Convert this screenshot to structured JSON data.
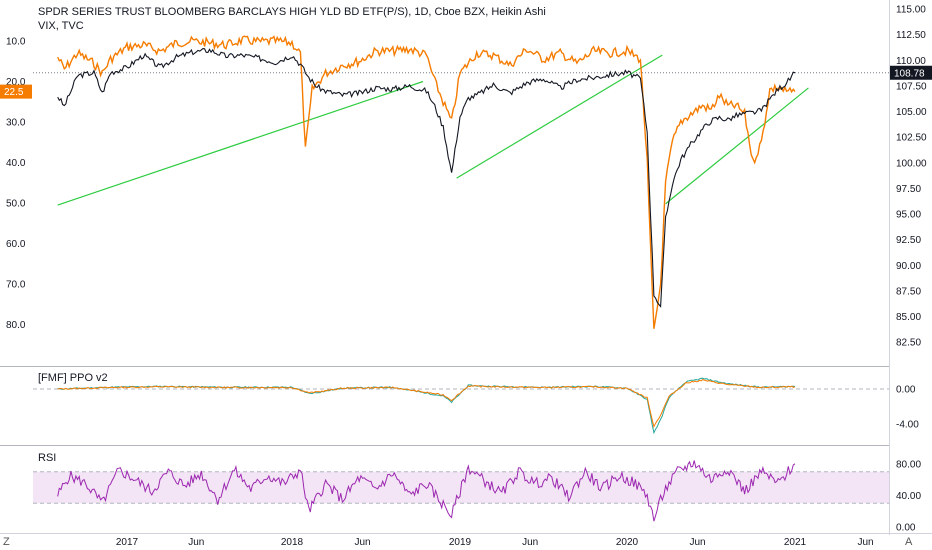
{
  "header": {
    "title": "SPDR SERIES TRUST BLOOMBERG BARCLAYS HIGH YLD BD ETF(P/S), 1D, Cboe BZX, Heikin Ashi",
    "overlay_symbol": "VIX, TVC"
  },
  "panes": {
    "ppo_label": "[FMF] PPO v2",
    "rsi_label": "RSI"
  },
  "corner": {
    "left": "Z",
    "right": "A"
  },
  "badges": {
    "jnk_price": "108.78",
    "vix_value": "22.5",
    "jnk_color": "#131722",
    "vix_color": "#f57c00"
  },
  "colors": {
    "jnk_line": "#131722",
    "vix_line": "#f57c00",
    "trendline": "#2ecc40",
    "rsi_line": "#9c27b0",
    "rsi_band": "#f3e5f5",
    "ppo_pos": "#26a69a",
    "ppo_neg": "#ef5350"
  },
  "chart_data": [
    {
      "type": "line",
      "title": "SPDR SERIES TRUST BLOOMBERG BARCLAYS HIGH YLD BD ETF(P/S), 1D, Cboe BZX, Heikin Ashi",
      "x_ticks": [
        "2017",
        "Jun",
        "2018",
        "Jun",
        "2019",
        "Jun",
        "2020",
        "Jun",
        "2021",
        "Jun"
      ],
      "right_axis_ticks": [
        "115.00",
        "112.50",
        "110.00",
        "107.50",
        "105.00",
        "102.50",
        "100.00",
        "97.50",
        "95.00",
        "92.50",
        "90.00",
        "87.50",
        "85.00",
        "82.50"
      ],
      "left_axis_ticks": [
        "10.0",
        "20.0",
        "30.0",
        "40.0",
        "50.0",
        "60.0",
        "70.0",
        "80.0"
      ],
      "left_axis_inverted": true,
      "series": [
        {
          "name": "SPDR SERIES TRUST BLOOMBERG BARCLAYS HIGH YLD BD ETF(P/S)",
          "axis": "right",
          "x": [
            2016.58,
            2016.62,
            2016.7,
            2016.8,
            2016.85,
            2016.9,
            2017.0,
            2017.1,
            2017.2,
            2017.3,
            2017.4,
            2017.5,
            2017.6,
            2017.7,
            2017.8,
            2017.9,
            2018.0,
            2018.05,
            2018.1,
            2018.15,
            2018.2,
            2018.3,
            2018.4,
            2018.5,
            2018.6,
            2018.7,
            2018.8,
            2018.85,
            2018.9,
            2018.95,
            2019.0,
            2019.05,
            2019.1,
            2019.2,
            2019.3,
            2019.4,
            2019.5,
            2019.6,
            2019.7,
            2019.8,
            2019.9,
            2020.0,
            2020.08,
            2020.12,
            2020.16,
            2020.2,
            2020.23,
            2020.27,
            2020.32,
            2020.38,
            2020.45,
            2020.5,
            2020.55,
            2020.6,
            2020.65,
            2020.7,
            2020.75,
            2020.8,
            2020.85,
            2020.9,
            2020.95,
            2021.0
          ],
          "values": [
            106.5,
            105.5,
            108.5,
            108.8,
            106.8,
            108.8,
            109.3,
            110.5,
            109.3,
            110.3,
            110.8,
            111.0,
            110.4,
            110.5,
            110.2,
            109.8,
            110.5,
            109.6,
            108.3,
            107.4,
            107.0,
            106.6,
            106.8,
            107.3,
            107.2,
            107.5,
            107.0,
            105.5,
            103.5,
            99.0,
            104.5,
            106.3,
            106.6,
            107.6,
            106.8,
            107.8,
            108.2,
            107.3,
            108.1,
            108.3,
            108.6,
            108.8,
            108.2,
            103.0,
            87.2,
            86.0,
            94.5,
            98.0,
            100.3,
            101.8,
            103.3,
            104.1,
            104.4,
            104.2,
            104.6,
            104.8,
            104.9,
            105.1,
            106.2,
            107.2,
            107.8,
            108.78
          ]
        },
        {
          "name": "VIX, TVC",
          "axis": "left",
          "x": [
            2016.58,
            2016.62,
            2016.7,
            2016.8,
            2016.85,
            2016.9,
            2017.0,
            2017.1,
            2017.2,
            2017.3,
            2017.4,
            2017.5,
            2017.6,
            2017.7,
            2017.8,
            2017.9,
            2018.0,
            2018.05,
            2018.08,
            2018.12,
            2018.2,
            2018.3,
            2018.4,
            2018.5,
            2018.6,
            2018.7,
            2018.8,
            2018.85,
            2018.9,
            2018.95,
            2019.0,
            2019.05,
            2019.1,
            2019.2,
            2019.3,
            2019.4,
            2019.5,
            2019.6,
            2019.7,
            2019.8,
            2019.9,
            2020.0,
            2020.08,
            2020.12,
            2020.16,
            2020.2,
            2020.23,
            2020.27,
            2020.32,
            2020.38,
            2020.45,
            2020.5,
            2020.55,
            2020.6,
            2020.65,
            2020.7,
            2020.75,
            2020.8,
            2020.85,
            2020.9,
            2020.95,
            2021.0
          ],
          "values": [
            14.0,
            17.0,
            13.0,
            15.5,
            18.0,
            14.5,
            11.5,
            11.0,
            12.5,
            10.5,
            10.0,
            10.5,
            11.0,
            9.8,
            10.2,
            10.0,
            10.5,
            13.0,
            37.0,
            22.0,
            18.0,
            16.0,
            15.0,
            12.5,
            12.5,
            12.0,
            13.5,
            20.0,
            25.0,
            30.0,
            18.0,
            15.5,
            13.0,
            13.5,
            16.0,
            12.0,
            14.5,
            13.0,
            15.5,
            12.5,
            13.0,
            12.5,
            14.5,
            40.0,
            82.0,
            70.0,
            45.0,
            35.0,
            30.0,
            28.0,
            26.0,
            27.0,
            23.5,
            26.0,
            26.0,
            28.0,
            40.0,
            35.0,
            22.0,
            21.5,
            22.5,
            22.5
          ]
        }
      ],
      "trendlines": [
        {
          "x": [
            2016.58,
            2018.78
          ],
          "y_vix": [
            50.5,
            20.0
          ]
        },
        {
          "x": [
            2018.98,
            2020.21
          ],
          "y_jnk": [
            98.5,
            110.5
          ]
        },
        {
          "x": [
            2020.23,
            2021.08
          ],
          "y_jnk": [
            96.0,
            107.3
          ]
        }
      ],
      "hline": {
        "value": 108.78,
        "axis": "right",
        "style": "dotted"
      }
    },
    {
      "type": "line",
      "title": "[FMF] PPO v2",
      "right_axis_ticks": [
        "0.00",
        "-4.00"
      ],
      "series": [
        {
          "axis": "right",
          "x": [
            2016.58,
            2016.9,
            2017.2,
            2017.6,
            2018.0,
            2018.1,
            2018.15,
            2018.3,
            2018.6,
            2018.9,
            2018.95,
            2019.05,
            2019.2,
            2019.5,
            2019.8,
            2020.0,
            2020.12,
            2020.16,
            2020.2,
            2020.25,
            2020.35,
            2020.45,
            2020.6,
            2020.8,
            2021.0
          ],
          "values": [
            0.0,
            0.2,
            0.3,
            0.2,
            0.2,
            -0.5,
            -0.4,
            0.1,
            0.2,
            -0.8,
            -1.5,
            0.4,
            0.3,
            0.2,
            0.3,
            0.1,
            -1.2,
            -5.0,
            -3.5,
            -1.0,
            0.8,
            1.2,
            0.6,
            0.2,
            0.3
          ]
        }
      ]
    },
    {
      "type": "line",
      "title": "RSI",
      "right_axis_ticks": [
        "80.00",
        "40.00",
        "0.00"
      ],
      "band": [
        30,
        70
      ],
      "series": [
        {
          "axis": "right",
          "x": [
            2016.58,
            2016.65,
            2016.75,
            2016.85,
            2016.95,
            2017.05,
            2017.15,
            2017.25,
            2017.35,
            2017.45,
            2017.55,
            2017.65,
            2017.75,
            2017.85,
            2017.95,
            2018.05,
            2018.1,
            2018.2,
            2018.3,
            2018.4,
            2018.5,
            2018.6,
            2018.7,
            2018.8,
            2018.9,
            2018.95,
            2019.05,
            2019.15,
            2019.25,
            2019.35,
            2019.45,
            2019.55,
            2019.65,
            2019.75,
            2019.85,
            2019.95,
            2020.05,
            2020.12,
            2020.16,
            2020.22,
            2020.3,
            2020.4,
            2020.5,
            2020.6,
            2020.7,
            2020.8,
            2020.9,
            2021.0
          ],
          "values": [
            40,
            65,
            55,
            30,
            72,
            60,
            45,
            70,
            52,
            68,
            35,
            72,
            48,
            65,
            55,
            72,
            20,
            55,
            35,
            62,
            48,
            68,
            40,
            55,
            28,
            15,
            75,
            58,
            42,
            70,
            55,
            62,
            38,
            70,
            48,
            65,
            55,
            40,
            10,
            45,
            70,
            82,
            60,
            75,
            45,
            70,
            55,
            80
          ]
        }
      ]
    }
  ]
}
